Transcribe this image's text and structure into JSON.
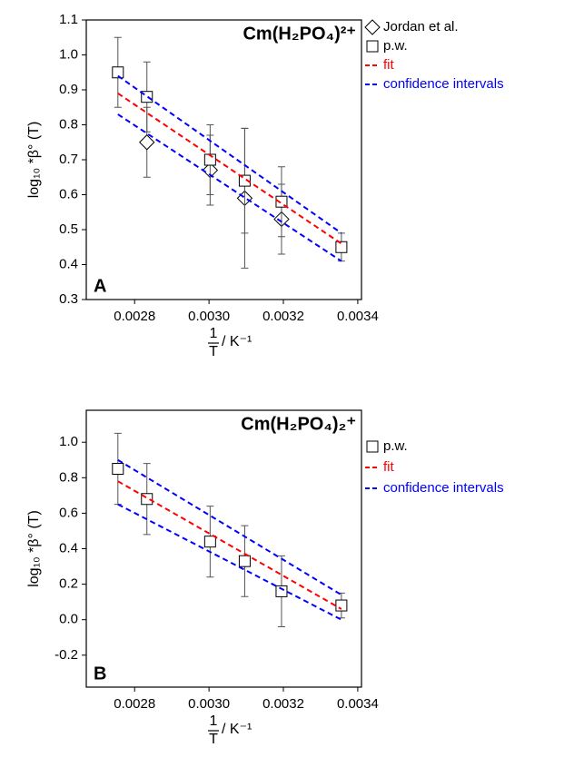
{
  "chart_data": [
    {
      "type": "scatter",
      "title": "Cm(H₂PO₄)²⁺",
      "panel_label": "A",
      "y_label": "log₁₀ *β° (T)",
      "x_label": {
        "numerator": "1",
        "denominator": "T",
        "unit": "/ K⁻¹"
      },
      "xlim": [
        0.00267,
        0.00341
      ],
      "xticks": [
        0.0028,
        {
          "value": 0.003,
          "label": "0.0030"
        },
        0.0032,
        0.0034
      ],
      "ylim": [
        0.3,
        1.1
      ],
      "yticks": [
        0.3,
        0.4,
        0.5,
        0.6,
        0.7,
        0.8,
        0.9,
        {
          "value": 1,
          "label": "1.0"
        },
        1.1
      ],
      "series": [
        {
          "name": "Jordan et al.",
          "marker": "diamond",
          "color": "#000000",
          "x": [
            0.002833,
            0.003003,
            0.003096,
            0.003195
          ],
          "values": [
            0.75,
            0.67,
            0.59,
            0.53
          ],
          "errors": [
            0.1,
            0.1,
            0.2,
            0.1
          ]
        },
        {
          "name": "p.w.",
          "marker": "square",
          "color": "#000000",
          "x": [
            0.002755,
            0.002833,
            0.003003,
            0.003096,
            0.003195,
            0.003356
          ],
          "values": [
            0.95,
            0.88,
            0.7,
            0.64,
            0.58,
            0.45
          ],
          "errors": [
            0.1,
            0.1,
            0.1,
            0.15,
            0.1,
            0.04
          ]
        },
        {
          "name": "fit",
          "marker": "line",
          "color": "#ff0000",
          "x": [
            0.002755,
            0.003356
          ],
          "values": [
            0.89,
            0.46
          ]
        },
        {
          "name": "confidence intervals",
          "marker": "band",
          "color": "#0000ff",
          "x": [
            0.002755,
            0.003356
          ],
          "upper": [
            0.94,
            0.49
          ],
          "lower": [
            0.83,
            0.41
          ]
        }
      ]
    },
    {
      "type": "scatter",
      "title": "Cm(H₂PO₄)₂⁺",
      "panel_label": "B",
      "y_label": "log₁₀ *β° (T)",
      "x_label": {
        "numerator": "1",
        "denominator": "T",
        "unit": "/ K⁻¹"
      },
      "xlim": [
        0.00267,
        0.00341
      ],
      "xticks": [
        0.0028,
        {
          "value": 0.003,
          "label": "0.0030"
        },
        0.0032,
        0.0034
      ],
      "ylim": [
        -0.38,
        1.18
      ],
      "yticks": [
        -0.2,
        {
          "value": 0,
          "label": "0.0"
        },
        0.2,
        0.4,
        0.6,
        0.8,
        {
          "value": 1,
          "label": "1.0"
        }
      ],
      "series": [
        {
          "name": "p.w.",
          "marker": "square",
          "color": "#000000",
          "x": [
            0.002755,
            0.002833,
            0.003003,
            0.003096,
            0.003195,
            0.003356
          ],
          "values": [
            0.85,
            0.68,
            0.44,
            0.33,
            0.16,
            0.08
          ],
          "errors": [
            0.2,
            0.2,
            0.2,
            0.2,
            0.2,
            0.07
          ]
        },
        {
          "name": "fit",
          "marker": "line",
          "color": "#ff0000",
          "x": [
            0.002755,
            0.003356
          ],
          "values": [
            0.78,
            0.06
          ]
        },
        {
          "name": "confidence intervals",
          "marker": "band",
          "color": "#0000ff",
          "x": [
            0.002755,
            0.003356
          ],
          "upper": [
            0.9,
            0.14
          ],
          "lower": [
            0.65,
            0.0
          ]
        }
      ]
    }
  ]
}
